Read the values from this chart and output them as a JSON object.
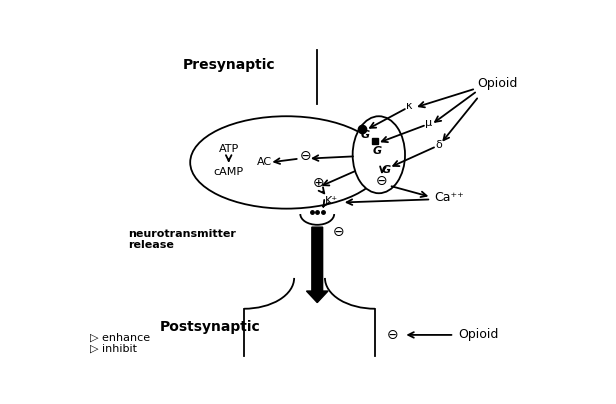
{
  "bg_color": "#ffffff",
  "presynaptic_label": "Presynaptic",
  "postsynaptic_label": "Postsynaptic",
  "neurotransmitter_label": "neurotransmitter\nrelease",
  "opioid_label_top": "Opioid",
  "opioid_label_bottom": "Opioid",
  "enhance_label": "▷ enhance",
  "inhibit_label": "▷ inhibit",
  "atp_label": "ATP",
  "camp_label": "cAMP",
  "ac_label": "AC",
  "kappa_label": "κ",
  "mu_label": "μ",
  "delta_label": "δ",
  "kplus_label": "K⁺",
  "caplus_label": "Ca⁺⁺",
  "plus_sym": "⊕",
  "minus_sym": "⊖",
  "G": "G"
}
